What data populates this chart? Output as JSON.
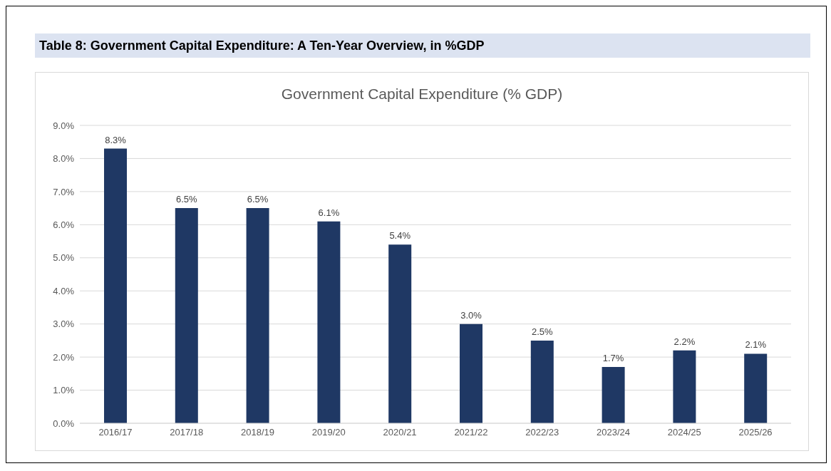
{
  "chart_data": {
    "type": "bar",
    "title": "Table 8: Government Capital Expenditure: A Ten-Year Overview, in %GDP",
    "subtitle": "Government Capital Expenditure (% GDP)",
    "categories": [
      "2016/17",
      "2017/18",
      "2018/19",
      "2019/20",
      "2020/21",
      "2021/22",
      "2022/23",
      "2023/24",
      "2024/25",
      "2025/26"
    ],
    "values": [
      8.3,
      6.5,
      6.5,
      6.1,
      5.4,
      3.0,
      2.5,
      1.7,
      2.2,
      2.1
    ],
    "value_labels": [
      "8.3%",
      "6.5%",
      "6.5%",
      "6.1%",
      "5.4%",
      "3.0%",
      "2.5%",
      "1.7%",
      "2.2%",
      "2.1%"
    ],
    "color": "#1f3864",
    "ylim": [
      0,
      9
    ],
    "yticks": [
      {
        "value": 0,
        "label": "0.0%"
      },
      {
        "value": 1,
        "label": "1.0%"
      },
      {
        "value": 2,
        "label": "2.0%"
      },
      {
        "value": 3,
        "label": "3.0%"
      },
      {
        "value": 4,
        "label": "4.0%"
      },
      {
        "value": 5,
        "label": "5.0%"
      },
      {
        "value": 6,
        "label": "6.0%"
      },
      {
        "value": 7,
        "label": "7.0%"
      },
      {
        "value": 8,
        "label": "8.0%"
      },
      {
        "value": 9,
        "label": "9.0%"
      }
    ],
    "grid": "y"
  }
}
